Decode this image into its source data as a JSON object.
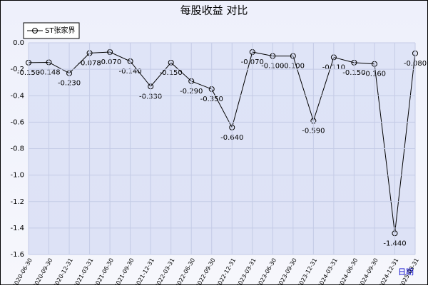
{
  "chart_data": {
    "type": "line",
    "title": "每股收益 对比",
    "xlabel": "日期",
    "categories": [
      "2020-06-30",
      "2020-09-30",
      "2020-12-31",
      "2021-03-31",
      "2021-06-30",
      "2021-09-30",
      "2021-12-31",
      "2022-03-31",
      "2022-06-30",
      "2022-09-30",
      "2022-12-31",
      "2023-03-31",
      "2023-06-30",
      "2023-09-30",
      "2023-12-31",
      "2024-03-31",
      "2024-06-30",
      "2024-09-30",
      "2024-12-31",
      "2025-03-31"
    ],
    "series": [
      {
        "name": "ST张家界",
        "color": "#000000",
        "values": [
          -0.15,
          -0.148,
          -0.23,
          -0.078,
          -0.07,
          -0.14,
          -0.33,
          -0.15,
          -0.29,
          -0.35,
          -0.64,
          -0.07,
          -0.1,
          -0.1,
          -0.59,
          -0.11,
          -0.15,
          -0.16,
          -1.44,
          -0.08
        ],
        "value_labels": [
          "-0.150",
          "-0.148",
          "-0.230",
          "-0.078",
          "-0.070",
          "-0.140",
          "-0.330",
          "-0.150",
          "-0.290",
          "-0.350",
          "-0.640",
          "-0.070",
          "-0.100",
          "-0.100",
          "-0.590",
          "-0.110",
          "-0.150",
          "-0.160",
          "-1.440",
          "-0.080"
        ]
      }
    ],
    "ylim": [
      -1.6,
      0
    ],
    "yticks": [
      {
        "value": 0,
        "label": "0.0"
      },
      -0.2,
      -0.4,
      -0.6,
      -0.8,
      {
        "value": -1,
        "label": "-1.0"
      },
      -1.2,
      -1.4,
      -1.6
    ],
    "grid": true,
    "legend": "top-left"
  }
}
